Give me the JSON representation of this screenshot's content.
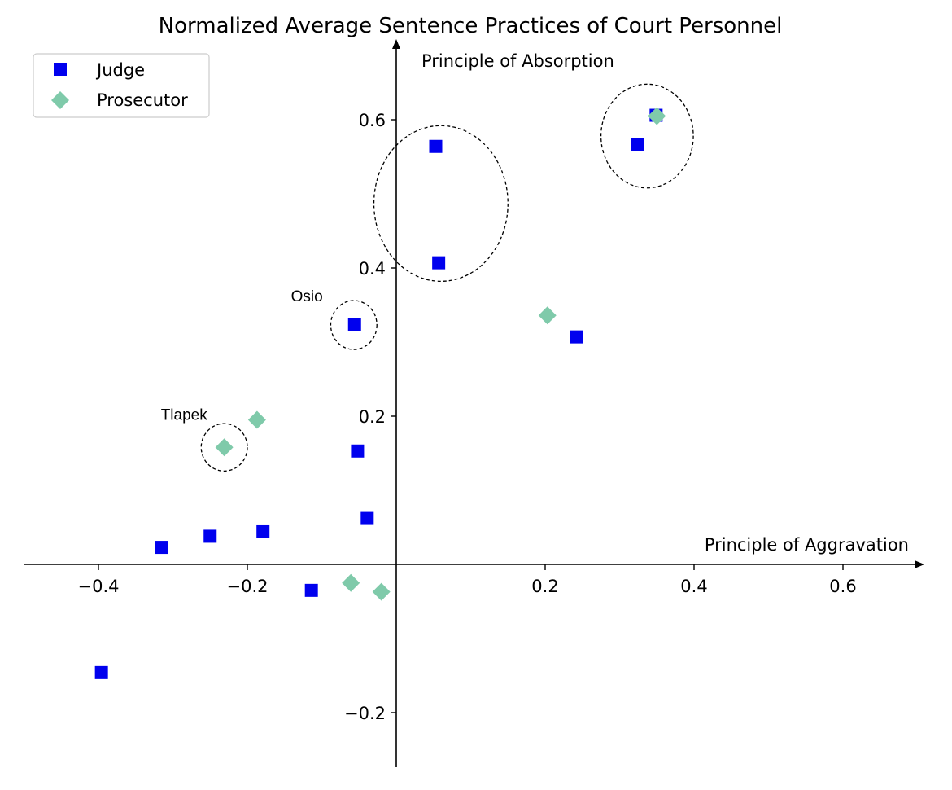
{
  "chart_data": {
    "type": "scatter",
    "title": "Normalized Average Sentence Practices of Court Personnel",
    "xlabel": "Principle of Aggravation",
    "ylabel": "Principle of Absorption",
    "xlim": [
      -0.5,
      0.7
    ],
    "ylim": [
      -0.275,
      0.7
    ],
    "x_ticks": [
      -0.4,
      -0.2,
      0.2,
      0.4,
      0.6
    ],
    "x_tick_labels": [
      "−0.4",
      "−0.2",
      "0.2",
      "0.4",
      "0.6"
    ],
    "y_ticks": [
      -0.2,
      0.2,
      0.4,
      0.6
    ],
    "y_tick_labels": [
      "−0.2",
      "0.2",
      "0.4",
      "0.6"
    ],
    "grid": false,
    "legend_position": "top-left",
    "series": [
      {
        "name": "Judge",
        "marker": "square",
        "color": "#0000ee",
        "points": [
          {
            "x": -0.396,
            "y": -0.146
          },
          {
            "x": -0.315,
            "y": 0.023
          },
          {
            "x": -0.25,
            "y": 0.038
          },
          {
            "x": -0.179,
            "y": 0.044
          },
          {
            "x": -0.114,
            "y": -0.035
          },
          {
            "x": -0.052,
            "y": 0.153
          },
          {
            "x": -0.039,
            "y": 0.062
          },
          {
            "x": -0.056,
            "y": 0.324
          },
          {
            "x": 0.053,
            "y": 0.564
          },
          {
            "x": 0.057,
            "y": 0.407
          },
          {
            "x": 0.242,
            "y": 0.307
          },
          {
            "x": 0.324,
            "y": 0.567
          },
          {
            "x": 0.349,
            "y": 0.606
          }
        ]
      },
      {
        "name": "Prosecutor",
        "marker": "diamond",
        "color": "#7fcaaa",
        "points": [
          {
            "x": -0.231,
            "y": 0.158
          },
          {
            "x": -0.187,
            "y": 0.195
          },
          {
            "x": -0.061,
            "y": -0.025
          },
          {
            "x": -0.02,
            "y": -0.037
          },
          {
            "x": 0.203,
            "y": 0.336
          },
          {
            "x": 0.35,
            "y": 0.605
          }
        ]
      }
    ],
    "annotations": [
      {
        "text": "Osio",
        "x": -0.12,
        "y": 0.355
      },
      {
        "text": "Tlapek",
        "x": -0.285,
        "y": 0.195
      }
    ],
    "highlight_ellipses": [
      {
        "cx": 0.06,
        "cy": 0.487,
        "rx": 0.09,
        "ry": 0.105
      },
      {
        "cx": 0.337,
        "cy": 0.578,
        "rx": 0.062,
        "ry": 0.07
      },
      {
        "cx": -0.057,
        "cy": 0.323,
        "rx": 0.031,
        "ry": 0.033
      },
      {
        "cx": -0.231,
        "cy": 0.158,
        "rx": 0.031,
        "ry": 0.032
      }
    ]
  }
}
